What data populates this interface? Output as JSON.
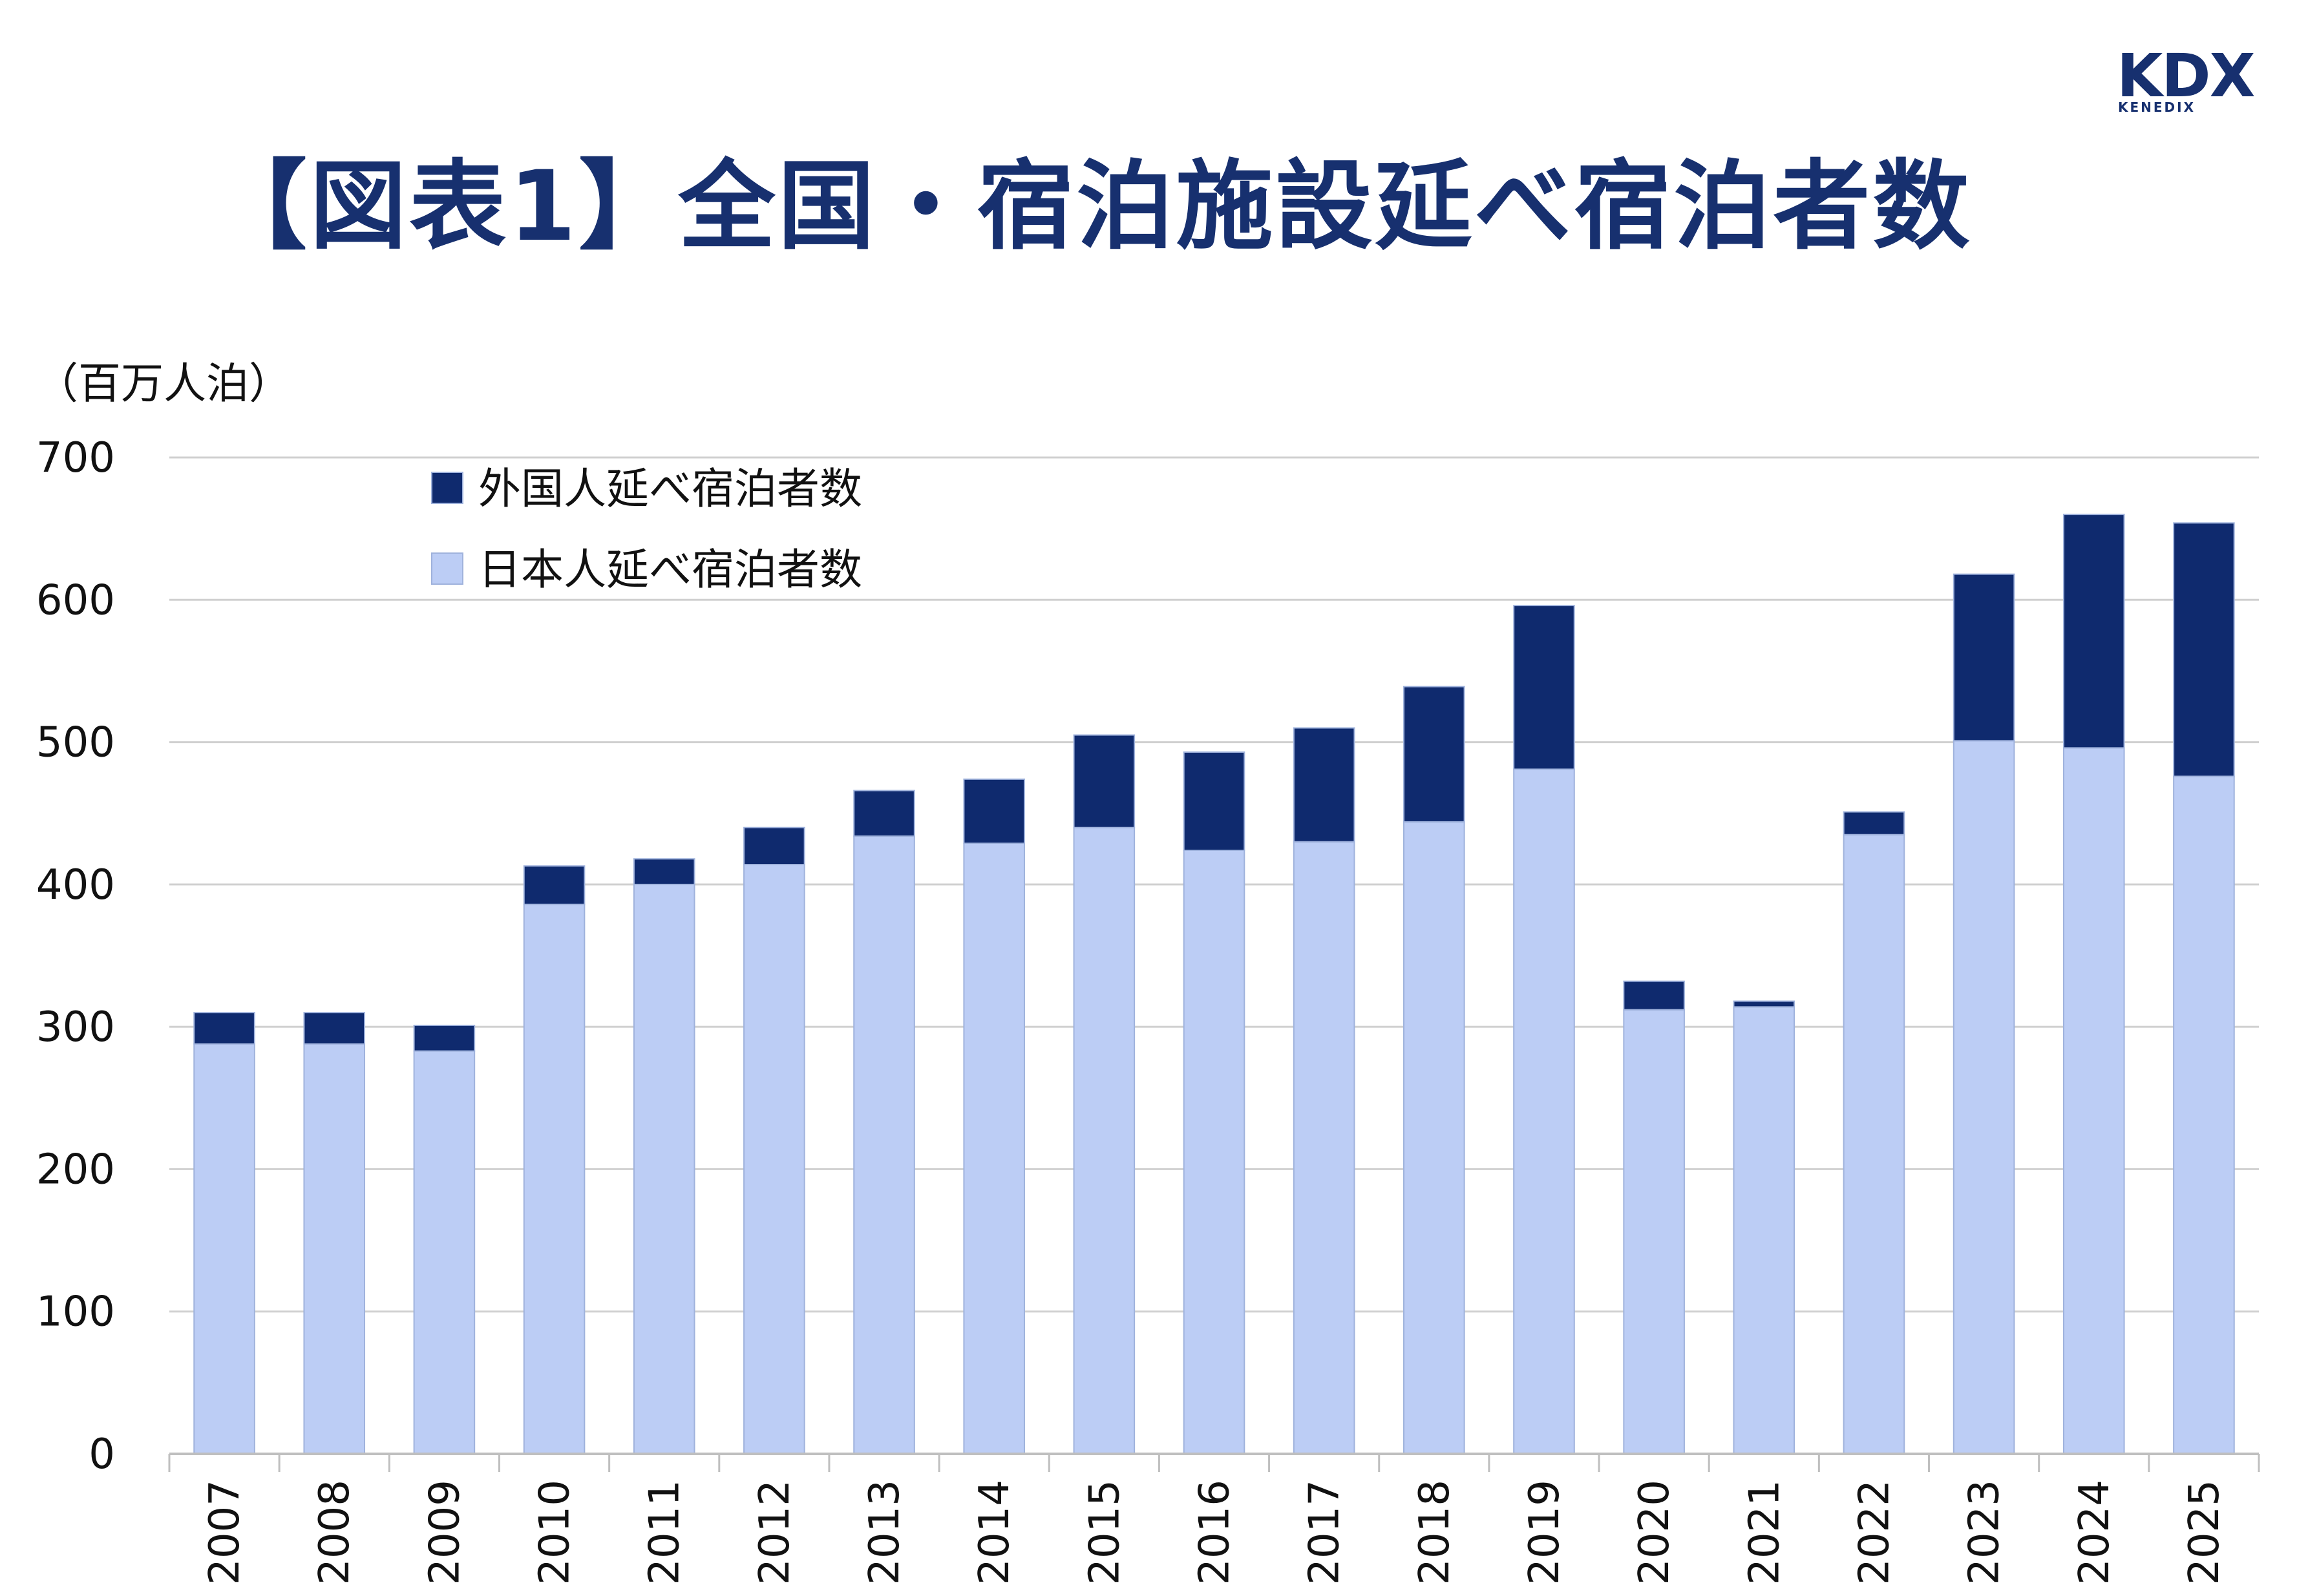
{
  "logo": {
    "main": "KDX",
    "sub": "KENEDIX"
  },
  "title": "【図表1】全国・宿泊施設延べ宿泊者数",
  "unit_label": "（百万人泊）",
  "colors": {
    "foreign": "#0f2a6e",
    "japanese": "#bccdf5",
    "brand": "#17306f",
    "grid": "#d0d0d0"
  },
  "chart_data": {
    "type": "bar",
    "stacked": true,
    "categories": [
      "2007",
      "2008",
      "2009",
      "2010",
      "2011",
      "2012",
      "2013",
      "2014",
      "2015",
      "2016",
      "2017",
      "2018",
      "2019",
      "2020",
      "2021",
      "2022",
      "2023",
      "2024",
      "2025"
    ],
    "series": [
      {
        "name": "日本人延べ宿泊者数",
        "values": [
          288,
          288,
          283,
          386,
          400,
          414,
          434,
          429,
          440,
          424,
          430,
          444,
          481,
          312,
          314,
          435,
          501,
          496,
          476
        ]
      },
      {
        "name": "外国人延べ宿泊者数",
        "values": [
          22,
          22,
          18,
          27,
          18,
          26,
          32,
          45,
          65,
          69,
          80,
          95,
          115,
          20,
          4,
          16,
          117,
          164,
          178
        ]
      }
    ],
    "ylim": [
      0,
      700
    ],
    "yticks": [
      0,
      100,
      200,
      300,
      400,
      500,
      600,
      700
    ],
    "grid": true,
    "legend_position": "top-left"
  }
}
